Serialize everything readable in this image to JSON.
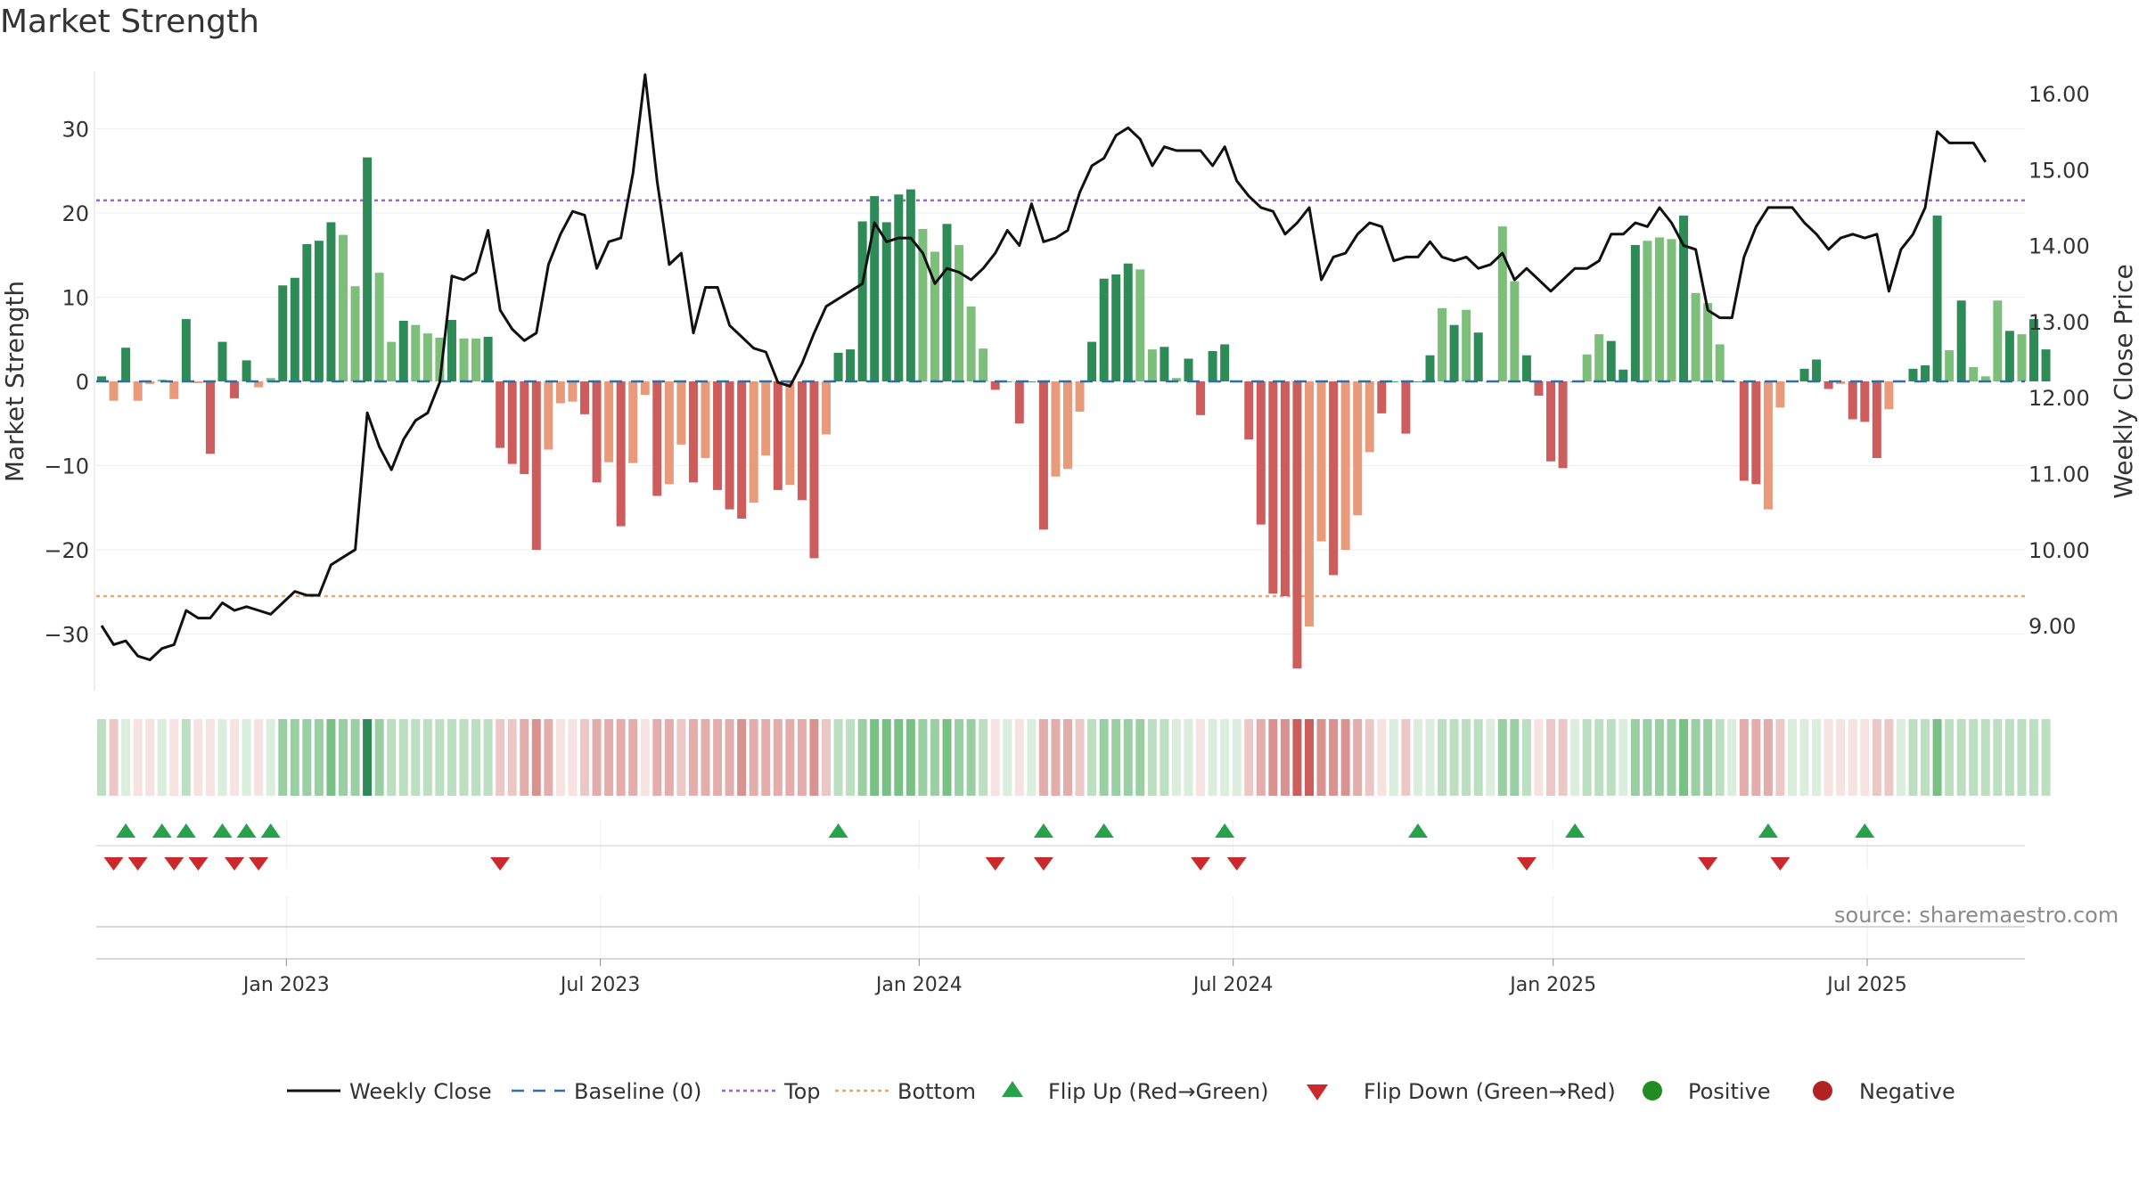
{
  "title": "Market Strength",
  "source": "source: sharemaestro.com",
  "chart_data": {
    "type": "bar+line",
    "title": "Market Strength",
    "ylabel_left": "Market Strength",
    "ylabel_right": "Weekly Close Price",
    "ylim_left": [
      -37,
      37
    ],
    "ylim_right": [
      8.2,
      16.2
    ],
    "yticks_left": [
      30,
      20,
      10,
      0,
      -10,
      -20,
      -30
    ],
    "ytick_labels_left": [
      "30",
      "20",
      "10",
      "0",
      "−10",
      "−20",
      "−30"
    ],
    "yticks_right": [
      16.0,
      15.0,
      14.0,
      13.0,
      12.0,
      11.0,
      10.0,
      9.0
    ],
    "ytick_labels_right": [
      "16.00",
      "15.00",
      "14.00",
      "13.00",
      "12.00",
      "11.00",
      "10.00",
      "9.00"
    ],
    "x_tick_labels": [
      "Jan 2023",
      "Jul 2023",
      "Jan 2024",
      "Jul 2024",
      "Jan 2025",
      "Jul 2025"
    ],
    "x_tick_index": [
      15.3,
      41.3,
      67.7,
      93.7,
      120.2,
      146.2
    ],
    "top_line": 21.5,
    "bottom_line": -25.5,
    "baseline": 0,
    "strength": [
      0.6,
      -2.3,
      4,
      -2.3,
      -0.3,
      0.2,
      -2.1,
      7.4,
      -0.2,
      -8.6,
      4.7,
      -2,
      2.5,
      -0.7,
      0.4,
      11.4,
      12.3,
      16.3,
      16.7,
      18.9,
      17.4,
      11.3,
      26.6,
      12.9,
      4.7,
      7.2,
      6.7,
      5.7,
      5.2,
      7.3,
      5.1,
      5.1,
      5.3,
      -7.9,
      -9.8,
      -11,
      -20,
      -8.1,
      -2.6,
      -2.4,
      -3.9,
      -12,
      -9.6,
      -17.2,
      -9.7,
      -1.6,
      -13.6,
      -12.2,
      -7.5,
      -12,
      -9.1,
      -12.9,
      -15.2,
      -16.3,
      -14.4,
      -8.8,
      -12.9,
      -12.3,
      -14.1,
      -21,
      -6.3,
      3.4,
      3.8,
      19,
      22,
      18.9,
      22.2,
      22.8,
      18.1,
      15.4,
      18.7,
      16.2,
      8.9,
      3.9,
      -1,
      0,
      -5,
      0,
      -17.6,
      -11.3,
      -10.4,
      -3.6,
      4.7,
      12.2,
      12.7,
      14,
      13.3,
      3.8,
      4.1,
      0.4,
      2.7,
      -4,
      3.6,
      4.4,
      0,
      -6.9,
      -17,
      -25.2,
      -25.5,
      -34.1,
      -29.1,
      -19,
      -23,
      -20,
      -15.9,
      -8.4,
      -3.8,
      0,
      -6.2,
      0,
      3.1,
      8.7,
      6.7,
      8.5,
      5.8,
      0,
      18.4,
      11.9,
      3.1,
      -1.7,
      -9.5,
      -10.3,
      0,
      3.2,
      5.6,
      4.8,
      1.4,
      16.2,
      16.7,
      17.1,
      16.9,
      19.7,
      10.5,
      9.3,
      4.4,
      0,
      -11.8,
      -12.2,
      -15.2,
      -3.1,
      0,
      1.5,
      2.6,
      -0.9,
      -0.3,
      -4.5,
      -4.8,
      -9.1,
      -3.3,
      0,
      1.5,
      1.9,
      19.7,
      3.7,
      9.6,
      1.7,
      0.6,
      9.6,
      6,
      5.6,
      7.4,
      3.8
    ],
    "strength_shade": [
      0,
      1,
      0,
      1,
      1,
      1,
      1,
      0,
      1,
      0,
      0,
      0,
      0,
      1,
      1,
      0,
      0,
      0,
      0,
      0,
      1,
      1,
      0,
      1,
      1,
      0,
      1,
      1,
      1,
      0,
      1,
      1,
      0,
      0,
      0,
      0,
      0,
      1,
      1,
      1,
      0,
      0,
      1,
      0,
      1,
      1,
      0,
      1,
      1,
      0,
      1,
      0,
      0,
      0,
      1,
      1,
      0,
      1,
      0,
      0,
      1,
      0,
      0,
      0,
      0,
      0,
      0,
      0,
      1,
      1,
      0,
      1,
      1,
      1,
      0,
      0,
      0,
      0,
      0,
      1,
      1,
      1,
      0,
      0,
      0,
      0,
      1,
      1,
      0,
      1,
      0,
      0,
      0,
      0,
      0,
      0,
      0,
      0,
      0,
      0,
      1,
      1,
      0,
      1,
      1,
      1,
      0,
      0,
      0,
      0,
      0,
      1,
      0,
      1,
      0,
      0,
      1,
      1,
      0,
      0,
      0,
      0,
      0,
      1,
      1,
      0,
      0,
      0,
      1,
      1,
      1,
      0,
      1,
      1,
      1,
      0,
      0,
      0,
      1,
      1,
      0,
      0,
      0,
      0,
      1,
      0,
      0,
      0,
      1,
      0,
      0,
      0,
      0,
      1,
      0,
      1,
      1,
      1,
      0,
      1
    ],
    "weekly_close": [
      9,
      8.75,
      8.8,
      8.6,
      8.55,
      8.7,
      8.75,
      9.2,
      9.1,
      9.1,
      9.3,
      9.2,
      9.25,
      9.2,
      9.15,
      9.3,
      9.45,
      9.4,
      9.4,
      9.8,
      9.9,
      10,
      11.8,
      11.35,
      11.05,
      11.45,
      11.7,
      11.8,
      12.2,
      13.6,
      13.55,
      13.65,
      14.2,
      13.15,
      12.9,
      12.75,
      12.85,
      13.75,
      14.15,
      14.45,
      14.4,
      13.7,
      14.05,
      14.1,
      14.95,
      16.25,
      14.85,
      13.75,
      13.9,
      12.85,
      13.45,
      13.45,
      12.95,
      12.8,
      12.65,
      12.6,
      12.2,
      12.15,
      12.45,
      12.85,
      13.2,
      13.3,
      13.4,
      13.5,
      14.3,
      14.05,
      14.1,
      14.1,
      13.9,
      13.5,
      13.7,
      13.65,
      13.55,
      13.7,
      13.9,
      14.2,
      14,
      14.55,
      14.05,
      14.1,
      14.2,
      14.7,
      15.05,
      15.15,
      15.45,
      15.55,
      15.4,
      15.05,
      15.3,
      15.25,
      15.25,
      15.25,
      15.05,
      15.3,
      14.85,
      14.65,
      14.5,
      14.45,
      14.15,
      14.3,
      14.5,
      13.55,
      13.85,
      13.9,
      14.15,
      14.3,
      14.25,
      13.8,
      13.85,
      13.85,
      14.05,
      13.85,
      13.8,
      13.85,
      13.7,
      13.75,
      13.9,
      13.55,
      13.7,
      13.55,
      13.4,
      13.55,
      13.7,
      13.7,
      13.8,
      14.15,
      14.15,
      14.3,
      14.25,
      14.5,
      14.3,
      14,
      13.95,
      13.15,
      13.05,
      13.05,
      13.85,
      14.25,
      14.5,
      14.5,
      14.5,
      14.3,
      14.15,
      13.95,
      14.1,
      14.15,
      14.1,
      14.15,
      13.4,
      13.95,
      14.15,
      14.5,
      15.5,
      15.35,
      15.35,
      15.35,
      15.1
    ],
    "heatmap_level": [
      2,
      2,
      1,
      1,
      1,
      1,
      1,
      2,
      1,
      1,
      1,
      1,
      1,
      1,
      1,
      3,
      3,
      3,
      3,
      4,
      3,
      3,
      5,
      3,
      2,
      2,
      2,
      2,
      2,
      2,
      2,
      2,
      2,
      2,
      2,
      3,
      4,
      3,
      1,
      1,
      2,
      3,
      3,
      3,
      3,
      1,
      3,
      3,
      2,
      3,
      3,
      3,
      3,
      4,
      3,
      3,
      3,
      3,
      3,
      4,
      2,
      2,
      2,
      3,
      4,
      4,
      4,
      4,
      3,
      3,
      4,
      3,
      3,
      2,
      1,
      1,
      1,
      1,
      3,
      3,
      3,
      2,
      2,
      3,
      3,
      3,
      3,
      2,
      2,
      1,
      1,
      1,
      1,
      1,
      1,
      2,
      3,
      4,
      4,
      5,
      5,
      4,
      4,
      4,
      3,
      2,
      1,
      1,
      2,
      1,
      1,
      2,
      2,
      2,
      2,
      1,
      3,
      3,
      2,
      1,
      2,
      2,
      1,
      2,
      2,
      2,
      1,
      3,
      3,
      3,
      3,
      4,
      3,
      3,
      2,
      1,
      3,
      3,
      3,
      2,
      1,
      1,
      1,
      1,
      1,
      1,
      1,
      2,
      2,
      1,
      2,
      2,
      4,
      2,
      2,
      2,
      2,
      2,
      2,
      2,
      2,
      2
    ],
    "flip_up_index": [
      2,
      5,
      7,
      10,
      12,
      14,
      61,
      78,
      83,
      93,
      109,
      122,
      138,
      146
    ],
    "flip_down_index": [
      1,
      3,
      6,
      8,
      11,
      13,
      33,
      74,
      78,
      91,
      94,
      118,
      133,
      139
    ],
    "colors": {
      "green_dark": "#2e8b57",
      "green_light": "#7dbf7a",
      "red_dark": "#cd5c5c",
      "red_light": "#e99a7a",
      "top_line": "#9966cc",
      "bottom_line": "#e8a76b",
      "baseline": "#2e6fa8",
      "close_line": "#111111",
      "flip_up": "#27a14a",
      "flip_down": "#cc2a2a",
      "positive": "#228b22",
      "negative": "#b22222"
    },
    "legend": [
      {
        "label": "Weekly Close",
        "kind": "line"
      },
      {
        "label": "Baseline (0)",
        "kind": "dash"
      },
      {
        "label": "Top",
        "kind": "dot-purple"
      },
      {
        "label": "Bottom",
        "kind": "dot-orange"
      },
      {
        "label": "Flip Up (Red→Green)",
        "kind": "tri-up"
      },
      {
        "label": "Flip Down (Green→Red)",
        "kind": "tri-down"
      },
      {
        "label": "Positive",
        "kind": "dot-green"
      },
      {
        "label": "Negative",
        "kind": "dot-red"
      }
    ],
    "legend_position": "bottom-center"
  }
}
